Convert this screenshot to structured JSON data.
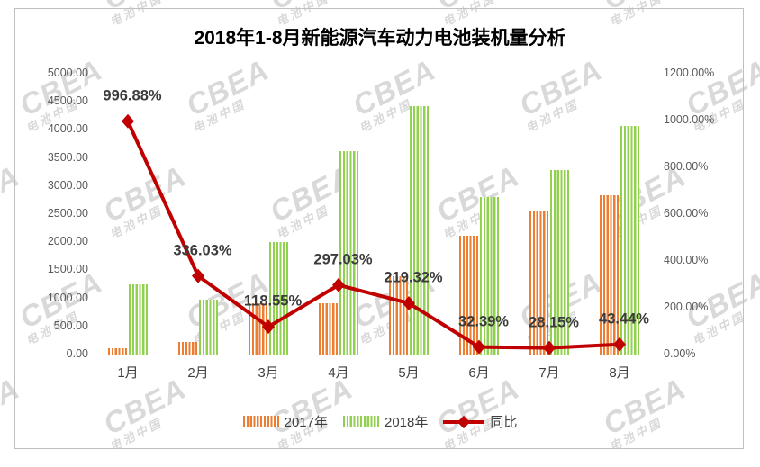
{
  "watermark": {
    "brand": "CBEA",
    "subtext": "电池中国"
  },
  "chart_data": {
    "type": "bar",
    "subtype": "grouped-bar-with-line-combo",
    "title": "2018年1-8月新能源汽车动力电池装机量分析",
    "categories": [
      "1月",
      "2月",
      "3月",
      "4月",
      "5月",
      "6月",
      "7月",
      "8月"
    ],
    "series": [
      {
        "name": "2017年",
        "type": "bar",
        "axis": "left",
        "color": "#ED7D31",
        "values": [
          114,
          222,
          920,
          912,
          1387,
          2123,
          2567,
          2838
        ]
      },
      {
        "name": "2018年",
        "type": "bar",
        "axis": "left",
        "color": "#92D050",
        "values": [
          1250,
          970,
          2010,
          3620,
          4430,
          2810,
          3290,
          4070
        ]
      },
      {
        "name": "同比",
        "type": "line",
        "axis": "right",
        "color": "#C00000",
        "values": [
          996.88,
          336.03,
          118.55,
          297.03,
          219.32,
          32.39,
          28.15,
          43.44
        ],
        "value_labels": [
          "996.88%",
          "336.03%",
          "118.55%",
          "297.03%",
          "219.32%",
          "32.39%",
          "28.15%",
          "43.44%"
        ]
      }
    ],
    "left_axis": {
      "min": 0,
      "max": 5000,
      "step": 500,
      "tick_labels": [
        "0.00",
        "500.00",
        "1000.00",
        "1500.00",
        "2000.00",
        "2500.00",
        "3000.00",
        "3500.00",
        "4000.00",
        "4500.00",
        "5000.00"
      ]
    },
    "right_axis": {
      "min": 0,
      "max": 1200,
      "step": 200,
      "tick_labels": [
        "0.00%",
        "200.00%",
        "400.00%",
        "600.00%",
        "800.00%",
        "1000.00%",
        "1200.00%"
      ]
    },
    "legend_position": "bottom",
    "grid": false
  }
}
